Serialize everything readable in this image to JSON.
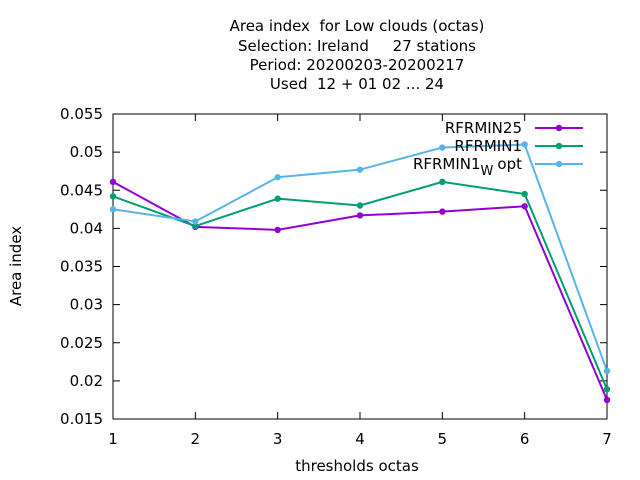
{
  "chart_data": {
    "type": "line",
    "title_lines": [
      "Area index  for Low clouds (octas)",
      "Selection: Ireland     27 stations",
      "Period: 20200203-20200217",
      "Used  12 + 01 02 ... 24"
    ],
    "xlabel": "thresholds octas",
    "ylabel": "Area index",
    "x": [
      1,
      2,
      3,
      4,
      5,
      6,
      7
    ],
    "xlim": [
      1,
      7
    ],
    "ylim": [
      0.015,
      0.055
    ],
    "yticks": [
      "0.015",
      "0.02",
      "0.025",
      "0.03",
      "0.035",
      "0.04",
      "0.045",
      "0.05",
      "0.055"
    ],
    "xticks": [
      "1",
      "2",
      "3",
      "4",
      "5",
      "6",
      "7"
    ],
    "legend_position": "top-right",
    "series": [
      {
        "name": "RFRMIN25",
        "color": "#9400d3",
        "values": [
          0.0461,
          0.0402,
          0.0398,
          0.0417,
          0.0422,
          0.0429,
          0.0175
        ]
      },
      {
        "name": "RFRMIN1",
        "color": "#009e73",
        "values": [
          0.0442,
          0.0403,
          0.0439,
          0.043,
          0.0461,
          0.0445,
          0.0189
        ]
      },
      {
        "name": "RFRMIN1",
        "name_subscript": "W",
        "name_suffix": "opt",
        "color": "#56b4e9",
        "values": [
          0.0425,
          0.0409,
          0.0467,
          0.0477,
          0.0506,
          0.051,
          0.0213
        ]
      }
    ]
  }
}
